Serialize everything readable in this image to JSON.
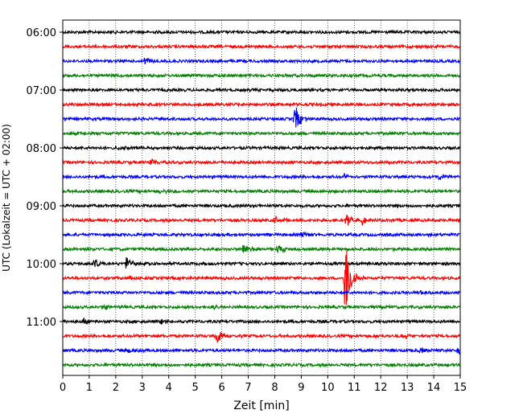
{
  "chart_data": {
    "type": "line",
    "title": "",
    "xlabel": "Zeit  [min]",
    "ylabel": "UTC (Lokalzeit = UTC + 02:00)",
    "xlim": [
      0,
      15
    ],
    "x_ticks": [
      "0",
      "1",
      "2",
      "3",
      "4",
      "5",
      "6",
      "7",
      "8",
      "9",
      "10",
      "11",
      "12",
      "13",
      "14",
      "15"
    ],
    "y_ticks": [
      "06:00",
      "07:00",
      "08:00",
      "09:00",
      "10:00",
      "11:00"
    ],
    "grid": "vertical dotted",
    "trace_interval_min": 15,
    "first_trace": "06:00",
    "colors": [
      "#000000",
      "#ff0000",
      "#0000ff",
      "#008000"
    ],
    "traces": [
      {
        "start": "06:00",
        "events": []
      },
      {
        "start": "06:15",
        "events": []
      },
      {
        "start": "06:30",
        "events": [
          {
            "t": 3.1,
            "amp": 0.35
          }
        ]
      },
      {
        "start": "06:45",
        "events": []
      },
      {
        "start": "07:00",
        "events": []
      },
      {
        "start": "07:15",
        "events": []
      },
      {
        "start": "07:30",
        "events": [
          {
            "t": 8.75,
            "amp": 1.3
          }
        ]
      },
      {
        "start": "07:45",
        "events": []
      },
      {
        "start": "08:00",
        "events": [
          {
            "t": 2.0,
            "amp": 0.2
          }
        ]
      },
      {
        "start": "08:15",
        "events": [
          {
            "t": 3.3,
            "amp": 0.35
          }
        ]
      },
      {
        "start": "08:30",
        "events": [
          {
            "t": 10.6,
            "amp": 0.25
          },
          {
            "t": 14.2,
            "amp": 0.25
          }
        ]
      },
      {
        "start": "08:45",
        "events": [
          {
            "t": 3.7,
            "amp": 0.2
          }
        ]
      },
      {
        "start": "09:00",
        "events": []
      },
      {
        "start": "09:15",
        "events": [
          {
            "t": 8.0,
            "amp": 0.3
          },
          {
            "t": 10.7,
            "amp": 0.5
          },
          {
            "t": 11.3,
            "amp": 0.3
          }
        ]
      },
      {
        "start": "09:30",
        "events": [
          {
            "t": 9.0,
            "amp": 0.2
          }
        ]
      },
      {
        "start": "09:45",
        "events": [
          {
            "t": 6.8,
            "amp": 0.6
          },
          {
            "t": 8.1,
            "amp": 0.55
          }
        ]
      },
      {
        "start": "10:00",
        "events": [
          {
            "t": 1.2,
            "amp": 0.45
          },
          {
            "t": 2.4,
            "amp": 0.55
          }
        ]
      },
      {
        "start": "10:15",
        "events": [
          {
            "t": 2.5,
            "amp": 0.25
          },
          {
            "t": 10.65,
            "amp": 3.3
          }
        ]
      },
      {
        "start": "10:30",
        "events": [
          {
            "t": 13.5,
            "amp": 0.2
          }
        ]
      },
      {
        "start": "10:45",
        "events": [
          {
            "t": 1.5,
            "amp": 0.2
          },
          {
            "t": 5.7,
            "amp": 0.2
          }
        ]
      },
      {
        "start": "11:00",
        "events": [
          {
            "t": 0.8,
            "amp": 0.2
          },
          {
            "t": 3.7,
            "amp": 0.15
          }
        ]
      },
      {
        "start": "11:15",
        "events": [
          {
            "t": 5.8,
            "amp": 0.8
          },
          {
            "t": 12.8,
            "amp": 0.2
          }
        ]
      },
      {
        "start": "11:30",
        "events": [
          {
            "t": 2.5,
            "amp": 0.3
          },
          {
            "t": 13.5,
            "amp": 0.25
          },
          {
            "t": 14.9,
            "amp": 0.3
          }
        ]
      },
      {
        "start": "11:45",
        "events": []
      }
    ]
  }
}
